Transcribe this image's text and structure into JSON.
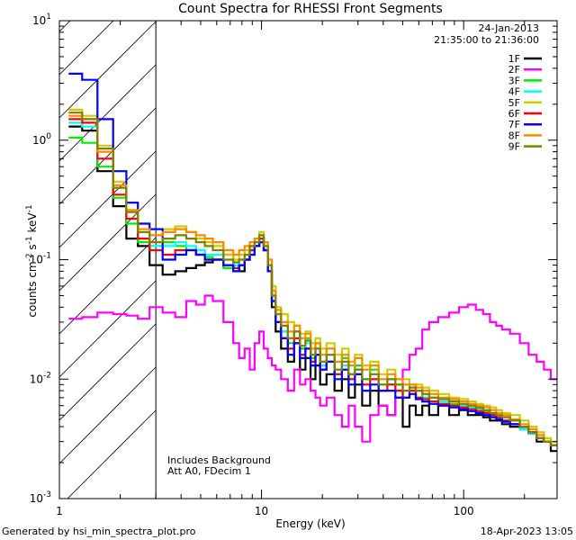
{
  "chart_data": {
    "type": "line",
    "title": "Count Spectra for RHESSI Front Segments",
    "xlabel": "Energy (keV)",
    "ylabel": {
      "main": "counts cm",
      "exp1": "-2",
      "mid": " s",
      "exp2": "-1",
      "tail": " keV",
      "exp3": "-1"
    },
    "xscale": "log",
    "yscale": "log",
    "xlim": [
      1,
      290
    ],
    "ylim": [
      0.001,
      10
    ],
    "x_ticks": [
      {
        "value": 1,
        "label": "1"
      },
      {
        "value": 10,
        "label": "10"
      },
      {
        "value": 100,
        "label": "100"
      }
    ],
    "y_ticks": [
      {
        "value": 0.001,
        "base": "10",
        "exp": "-3"
      },
      {
        "value": 0.01,
        "base": "10",
        "exp": "-2"
      },
      {
        "value": 0.1,
        "base": "10",
        "exp": "-1"
      },
      {
        "value": 1,
        "base": "10",
        "exp": "0"
      },
      {
        "value": 10,
        "base": "10",
        "exp": "1"
      }
    ],
    "hatched_region": {
      "x_range": [
        1,
        3
      ]
    },
    "date": "24-Jan-2013",
    "time_range": "21:35:00 to 21:36:00",
    "annotations": [
      "Includes Background",
      "Att A0, FDecim 1"
    ],
    "legend_position": "top-right",
    "energies": [
      1.2,
      1.4,
      1.7,
      2.0,
      2.3,
      2.6,
      3.0,
      3.5,
      4.0,
      4.5,
      5.0,
      5.5,
      6.0,
      7.0,
      7.5,
      8.0,
      8.5,
      9.0,
      9.5,
      10.0,
      10.5,
      11.0,
      11.5,
      12.0,
      13.0,
      14.0,
      15.0,
      16.0,
      17.0,
      18.0,
      19.0,
      20.0,
      22.0,
      24.0,
      26.0,
      28.0,
      30.0,
      33.0,
      36.0,
      40.0,
      44.0,
      48.0,
      52.0,
      56.0,
      60.0,
      65.0,
      70.0,
      80.0,
      90.0,
      100.0,
      110.0,
      120.0,
      130.0,
      140.0,
      150.0,
      160.0,
      180.0,
      200.0,
      220.0,
      240.0,
      260.0,
      280.0
    ],
    "series": [
      {
        "name": "1F",
        "color": "#000000",
        "values": [
          1.3,
          1.2,
          0.55,
          0.28,
          0.15,
          0.13,
          0.09,
          0.075,
          0.08,
          0.085,
          0.09,
          0.095,
          0.1,
          0.11,
          0.09,
          0.08,
          0.1,
          0.12,
          0.13,
          0.15,
          0.12,
          0.08,
          0.04,
          0.025,
          0.018,
          0.014,
          0.02,
          0.012,
          0.015,
          0.01,
          0.013,
          0.009,
          0.011,
          0.008,
          0.01,
          0.007,
          0.009,
          0.006,
          0.008,
          0.006,
          0.005,
          0.007,
          0.004,
          0.006,
          0.005,
          0.006,
          0.005,
          0.006,
          0.005,
          0.0055,
          0.005,
          0.005,
          0.0048,
          0.0045,
          0.0045,
          0.0042,
          0.004,
          0.0038,
          0.0035,
          0.003,
          0.003,
          0.0025
        ]
      },
      {
        "name": "2F",
        "color": "#ff00ff",
        "values": [
          0.032,
          0.033,
          0.036,
          0.035,
          0.034,
          0.032,
          0.04,
          0.036,
          0.033,
          0.045,
          0.042,
          0.05,
          0.045,
          0.03,
          0.02,
          0.015,
          0.018,
          0.012,
          0.02,
          0.025,
          0.018,
          0.015,
          0.013,
          0.012,
          0.01,
          0.008,
          0.012,
          0.009,
          0.01,
          0.008,
          0.007,
          0.006,
          0.007,
          0.005,
          0.004,
          0.006,
          0.004,
          0.003,
          0.005,
          0.006,
          0.005,
          0.007,
          0.012,
          0.016,
          0.018,
          0.026,
          0.03,
          0.033,
          0.036,
          0.04,
          0.042,
          0.038,
          0.035,
          0.03,
          0.028,
          0.026,
          0.024,
          0.02,
          0.016,
          0.014,
          0.012,
          0.01
        ]
      },
      {
        "name": "3F",
        "color": "#00ee00",
        "values": [
          1.05,
          0.95,
          0.6,
          0.33,
          0.2,
          0.14,
          0.13,
          0.14,
          0.13,
          0.12,
          0.11,
          0.105,
          0.1,
          0.085,
          0.08,
          0.09,
          0.1,
          0.11,
          0.13,
          0.15,
          0.12,
          0.08,
          0.045,
          0.03,
          0.025,
          0.02,
          0.025,
          0.018,
          0.022,
          0.015,
          0.02,
          0.014,
          0.018,
          0.012,
          0.015,
          0.011,
          0.013,
          0.01,
          0.012,
          0.009,
          0.01,
          0.009,
          0.008,
          0.009,
          0.007,
          0.0075,
          0.007,
          0.0065,
          0.0062,
          0.006,
          0.0058,
          0.0056,
          0.0054,
          0.005,
          0.0048,
          0.0045,
          0.0042,
          0.004,
          0.0036,
          0.0032,
          0.003,
          0.0028
        ]
      },
      {
        "name": "4F",
        "color": "#00ffff",
        "values": [
          1.4,
          1.3,
          0.7,
          0.4,
          0.22,
          0.15,
          0.13,
          0.13,
          0.14,
          0.13,
          0.12,
          0.11,
          0.11,
          0.1,
          0.09,
          0.1,
          0.11,
          0.12,
          0.14,
          0.16,
          0.13,
          0.09,
          0.05,
          0.03,
          0.025,
          0.018,
          0.022,
          0.016,
          0.02,
          0.014,
          0.018,
          0.013,
          0.016,
          0.011,
          0.013,
          0.01,
          0.012,
          0.008,
          0.01,
          0.008,
          0.009,
          0.008,
          0.007,
          0.008,
          0.007,
          0.007,
          0.0065,
          0.0065,
          0.006,
          0.006,
          0.0058,
          0.0055,
          0.0052,
          0.005,
          0.0048,
          0.0045,
          0.0042,
          0.0038,
          0.0035,
          0.0032,
          0.003,
          0.0028
        ]
      },
      {
        "name": "5F",
        "color": "#cccc00",
        "values": [
          1.8,
          1.6,
          0.9,
          0.45,
          0.3,
          0.2,
          0.16,
          0.18,
          0.19,
          0.17,
          0.15,
          0.14,
          0.13,
          0.11,
          0.1,
          0.11,
          0.12,
          0.13,
          0.15,
          0.17,
          0.14,
          0.1,
          0.06,
          0.04,
          0.035,
          0.03,
          0.028,
          0.024,
          0.025,
          0.02,
          0.022,
          0.018,
          0.02,
          0.016,
          0.018,
          0.014,
          0.016,
          0.013,
          0.014,
          0.011,
          0.012,
          0.01,
          0.01,
          0.009,
          0.009,
          0.0085,
          0.008,
          0.0075,
          0.007,
          0.0068,
          0.0065,
          0.0062,
          0.006,
          0.0058,
          0.0055,
          0.0052,
          0.005,
          0.0045,
          0.004,
          0.0036,
          0.0032,
          0.003
        ]
      },
      {
        "name": "6F",
        "color": "#ff0000",
        "values": [
          1.5,
          1.4,
          0.7,
          0.35,
          0.22,
          0.15,
          0.12,
          0.11,
          0.12,
          0.12,
          0.11,
          0.1,
          0.1,
          0.09,
          0.085,
          0.09,
          0.1,
          0.12,
          0.13,
          0.15,
          0.12,
          0.08,
          0.045,
          0.03,
          0.022,
          0.018,
          0.022,
          0.016,
          0.018,
          0.014,
          0.016,
          0.012,
          0.014,
          0.011,
          0.012,
          0.01,
          0.011,
          0.009,
          0.01,
          0.008,
          0.009,
          0.008,
          0.007,
          0.008,
          0.007,
          0.0068,
          0.0065,
          0.0062,
          0.006,
          0.0058,
          0.0056,
          0.0054,
          0.0052,
          0.005,
          0.0048,
          0.0045,
          0.0042,
          0.004,
          0.0036,
          0.0032,
          0.003,
          0.0028
        ]
      },
      {
        "name": "7F",
        "color": "#0000ff",
        "values": [
          3.6,
          3.2,
          1.5,
          0.55,
          0.3,
          0.2,
          0.18,
          0.1,
          0.11,
          0.12,
          0.11,
          0.1,
          0.1,
          0.09,
          0.08,
          0.09,
          0.1,
          0.11,
          0.13,
          0.14,
          0.12,
          0.08,
          0.045,
          0.03,
          0.022,
          0.016,
          0.02,
          0.015,
          0.018,
          0.013,
          0.016,
          0.012,
          0.014,
          0.01,
          0.012,
          0.009,
          0.011,
          0.008,
          0.009,
          0.008,
          0.008,
          0.007,
          0.007,
          0.0075,
          0.0068,
          0.0065,
          0.0062,
          0.006,
          0.0058,
          0.0056,
          0.0054,
          0.0052,
          0.005,
          0.0048,
          0.0046,
          0.0044,
          0.0042,
          0.004,
          0.0036,
          0.0032,
          0.003,
          0.0028
        ]
      },
      {
        "name": "8F",
        "color": "#ff8800",
        "values": [
          1.6,
          1.5,
          0.8,
          0.42,
          0.26,
          0.18,
          0.16,
          0.17,
          0.18,
          0.17,
          0.16,
          0.15,
          0.14,
          0.12,
          0.11,
          0.12,
          0.13,
          0.14,
          0.15,
          0.16,
          0.14,
          0.1,
          0.055,
          0.038,
          0.03,
          0.025,
          0.028,
          0.022,
          0.024,
          0.018,
          0.02,
          0.016,
          0.018,
          0.014,
          0.016,
          0.013,
          0.015,
          0.012,
          0.013,
          0.01,
          0.011,
          0.01,
          0.009,
          0.009,
          0.0085,
          0.008,
          0.0075,
          0.007,
          0.0068,
          0.0065,
          0.0062,
          0.006,
          0.0058,
          0.0055,
          0.0052,
          0.005,
          0.0046,
          0.0042,
          0.0038,
          0.0034,
          0.003,
          0.0028
        ]
      },
      {
        "name": "9F",
        "color": "#808000",
        "values": [
          1.7,
          1.5,
          0.85,
          0.4,
          0.25,
          0.17,
          0.14,
          0.15,
          0.16,
          0.15,
          0.14,
          0.13,
          0.12,
          0.1,
          0.095,
          0.1,
          0.11,
          0.13,
          0.14,
          0.16,
          0.13,
          0.09,
          0.05,
          0.035,
          0.028,
          0.022,
          0.025,
          0.019,
          0.021,
          0.016,
          0.018,
          0.014,
          0.016,
          0.012,
          0.014,
          0.011,
          0.012,
          0.01,
          0.011,
          0.009,
          0.01,
          0.009,
          0.008,
          0.0085,
          0.008,
          0.0075,
          0.007,
          0.0068,
          0.0065,
          0.0062,
          0.006,
          0.0058,
          0.0055,
          0.0052,
          0.005,
          0.0048,
          0.0045,
          0.004,
          0.0036,
          0.0032,
          0.003,
          0.0028
        ]
      }
    ]
  },
  "footer": {
    "generated_by": "Generated by hsi_min_spectra_plot.pro",
    "timestamp": "18-Apr-2023 13:05"
  }
}
